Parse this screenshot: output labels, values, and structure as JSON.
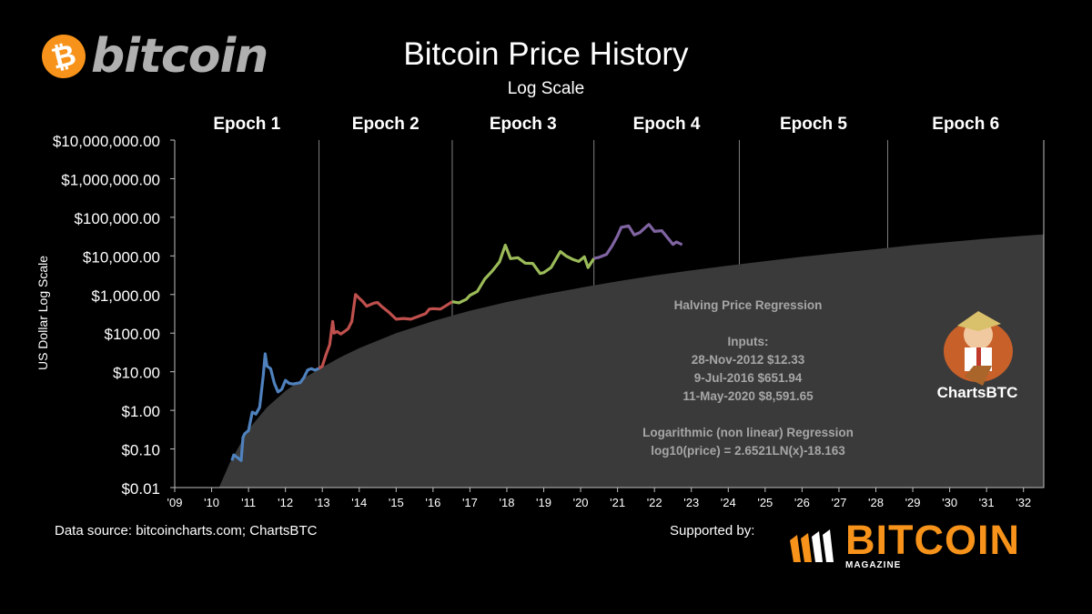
{
  "header": {
    "title": "Bitcoin Price History",
    "subtitle": "Log Scale",
    "brand": "bitcoin",
    "brand_symbol": "₿"
  },
  "chart_data": {
    "type": "line",
    "title": "Bitcoin Price History",
    "subtitle": "Log Scale",
    "ylabel": "US Dollar Log Scale",
    "xlabel": "",
    "yscale": "log",
    "ylim": [
      0.01,
      10000000
    ],
    "y_ticks": [
      {
        "v": 0.01,
        "label": "$0.01"
      },
      {
        "v": 0.1,
        "label": "$0.10"
      },
      {
        "v": 1,
        "label": "$1.00"
      },
      {
        "v": 10,
        "label": "$10.00"
      },
      {
        "v": 100,
        "label": "$100.00"
      },
      {
        "v": 1000,
        "label": "$1,000.00"
      },
      {
        "v": 10000,
        "label": "$10,000.00"
      },
      {
        "v": 100000,
        "label": "$100,000.00"
      },
      {
        "v": 1000000,
        "label": "$1,000,000.00"
      },
      {
        "v": 10000000,
        "label": "$10,000,000.00"
      }
    ],
    "xlim": [
      2009.0,
      2032.55
    ],
    "x_ticks": [
      {
        "v": 2009,
        "label": "'09"
      },
      {
        "v": 2010,
        "label": "'10"
      },
      {
        "v": 2011,
        "label": "'11"
      },
      {
        "v": 2012,
        "label": "'12"
      },
      {
        "v": 2013,
        "label": "'13"
      },
      {
        "v": 2014,
        "label": "'14"
      },
      {
        "v": 2015,
        "label": "'15"
      },
      {
        "v": 2016,
        "label": "'16"
      },
      {
        "v": 2017,
        "label": "'17"
      },
      {
        "v": 2018,
        "label": "'18"
      },
      {
        "v": 2019,
        "label": "'19"
      },
      {
        "v": 2020,
        "label": "'20"
      },
      {
        "v": 2021,
        "label": "'21"
      },
      {
        "v": 2022,
        "label": "'22"
      },
      {
        "v": 2023,
        "label": "'23"
      },
      {
        "v": 2024,
        "label": "'24"
      },
      {
        "v": 2025,
        "label": "'25"
      },
      {
        "v": 2026,
        "label": "'26"
      },
      {
        "v": 2027,
        "label": "'27"
      },
      {
        "v": 2028,
        "label": "'28"
      },
      {
        "v": 2029,
        "label": "'29"
      },
      {
        "v": 2030,
        "label": "'30"
      },
      {
        "v": 2031,
        "label": "'31"
      },
      {
        "v": 2032,
        "label": "'32"
      }
    ],
    "epochs": [
      {
        "label": "Epoch 1",
        "start": 2009.0,
        "end": 2012.91
      },
      {
        "label": "Epoch 2",
        "start": 2012.91,
        "end": 2016.52
      },
      {
        "label": "Epoch 3",
        "start": 2016.52,
        "end": 2020.36
      },
      {
        "label": "Epoch 4",
        "start": 2020.36,
        "end": 2024.3
      },
      {
        "label": "Epoch 5",
        "start": 2024.3,
        "end": 2028.32
      },
      {
        "label": "Epoch 6",
        "start": 2028.32,
        "end": 2032.55
      }
    ],
    "regression": {
      "label": "Logarithmic (non linear) Regression",
      "formula": "log10(price) = 2.6521LN(x)-18.163",
      "fill_color": "#3a3a3a",
      "points": [
        [
          2010.2,
          0.01
        ],
        [
          2010.5,
          0.045
        ],
        [
          2011.0,
          0.32
        ],
        [
          2011.5,
          1.2
        ],
        [
          2012.0,
          3.2
        ],
        [
          2012.5,
          6.8
        ],
        [
          2013.0,
          13
        ],
        [
          2013.5,
          24
        ],
        [
          2014.0,
          41
        ],
        [
          2015.0,
          100
        ],
        [
          2016.0,
          205
        ],
        [
          2017.0,
          380
        ],
        [
          2018.0,
          640
        ],
        [
          2019.0,
          1000
        ],
        [
          2020.0,
          1500
        ],
        [
          2021.0,
          2200
        ],
        [
          2022.0,
          3100
        ],
        [
          2023.0,
          4200
        ],
        [
          2024.0,
          5600
        ],
        [
          2025.0,
          7300
        ],
        [
          2026.0,
          9500
        ],
        [
          2027.0,
          12000
        ],
        [
          2028.0,
          15000
        ],
        [
          2029.0,
          19000
        ],
        [
          2030.0,
          23000
        ],
        [
          2031.0,
          28000
        ],
        [
          2032.0,
          33000
        ],
        [
          2032.55,
          36000
        ]
      ]
    },
    "series": [
      {
        "name": "Epoch 1",
        "color": "#4f81bd",
        "points": [
          [
            2010.55,
            0.05
          ],
          [
            2010.6,
            0.07
          ],
          [
            2010.7,
            0.06
          ],
          [
            2010.8,
            0.05
          ],
          [
            2010.85,
            0.2
          ],
          [
            2010.9,
            0.25
          ],
          [
            2011.0,
            0.3
          ],
          [
            2011.1,
            0.9
          ],
          [
            2011.2,
            0.8
          ],
          [
            2011.3,
            1.2
          ],
          [
            2011.4,
            8
          ],
          [
            2011.45,
            29
          ],
          [
            2011.5,
            14
          ],
          [
            2011.6,
            12
          ],
          [
            2011.7,
            5
          ],
          [
            2011.8,
            3
          ],
          [
            2011.9,
            3.5
          ],
          [
            2012.0,
            6
          ],
          [
            2012.1,
            5
          ],
          [
            2012.2,
            4.8
          ],
          [
            2012.3,
            5
          ],
          [
            2012.4,
            5.2
          ],
          [
            2012.5,
            7
          ],
          [
            2012.6,
            11
          ],
          [
            2012.7,
            12
          ],
          [
            2012.8,
            11
          ],
          [
            2012.91,
            12.3
          ]
        ]
      },
      {
        "name": "Epoch 2",
        "color": "#c0504d",
        "points": [
          [
            2012.91,
            12.3
          ],
          [
            2013.0,
            14
          ],
          [
            2013.1,
            28
          ],
          [
            2013.2,
            50
          ],
          [
            2013.28,
            200
          ],
          [
            2013.32,
            100
          ],
          [
            2013.4,
            110
          ],
          [
            2013.5,
            95
          ],
          [
            2013.6,
            110
          ],
          [
            2013.7,
            130
          ],
          [
            2013.8,
            200
          ],
          [
            2013.9,
            1000
          ],
          [
            2014.0,
            800
          ],
          [
            2014.1,
            650
          ],
          [
            2014.2,
            500
          ],
          [
            2014.4,
            600
          ],
          [
            2014.5,
            620
          ],
          [
            2014.6,
            500
          ],
          [
            2014.8,
            350
          ],
          [
            2015.0,
            230
          ],
          [
            2015.2,
            240
          ],
          [
            2015.4,
            230
          ],
          [
            2015.6,
            270
          ],
          [
            2015.8,
            320
          ],
          [
            2015.9,
            420
          ],
          [
            2016.0,
            430
          ],
          [
            2016.2,
            420
          ],
          [
            2016.4,
            550
          ],
          [
            2016.52,
            652
          ]
        ]
      },
      {
        "name": "Epoch 3",
        "color": "#9bbb59",
        "points": [
          [
            2016.52,
            652
          ],
          [
            2016.7,
            610
          ],
          [
            2016.9,
            750
          ],
          [
            2017.0,
            950
          ],
          [
            2017.2,
            1200
          ],
          [
            2017.4,
            2500
          ],
          [
            2017.6,
            4000
          ],
          [
            2017.8,
            7000
          ],
          [
            2017.96,
            19000
          ],
          [
            2018.1,
            8500
          ],
          [
            2018.3,
            9000
          ],
          [
            2018.5,
            6500
          ],
          [
            2018.7,
            6400
          ],
          [
            2018.9,
            3500
          ],
          [
            2019.0,
            3700
          ],
          [
            2019.2,
            5000
          ],
          [
            2019.45,
            13000
          ],
          [
            2019.6,
            10000
          ],
          [
            2019.8,
            8000
          ],
          [
            2019.95,
            7200
          ],
          [
            2020.1,
            9500
          ],
          [
            2020.2,
            5000
          ],
          [
            2020.36,
            8592
          ]
        ]
      },
      {
        "name": "Epoch 4",
        "color": "#8064a2",
        "points": [
          [
            2020.36,
            8592
          ],
          [
            2020.5,
            9200
          ],
          [
            2020.7,
            11000
          ],
          [
            2020.85,
            18000
          ],
          [
            2021.0,
            33000
          ],
          [
            2021.1,
            55000
          ],
          [
            2021.3,
            60000
          ],
          [
            2021.45,
            35000
          ],
          [
            2021.6,
            40000
          ],
          [
            2021.8,
            60000
          ],
          [
            2021.85,
            65000
          ],
          [
            2022.0,
            43000
          ],
          [
            2022.2,
            45000
          ],
          [
            2022.35,
            30000
          ],
          [
            2022.5,
            20000
          ],
          [
            2022.6,
            23000
          ],
          [
            2022.75,
            19500
          ]
        ]
      }
    ]
  },
  "regression_notes": {
    "title": "Halving Price Regression",
    "inputs_label": "Inputs:",
    "inputs": [
      "28-Nov-2012 $12.33",
      "9-Jul-2016 $651.94",
      "11-May-2020 $8,591.65"
    ],
    "regression_label": "Logarithmic (non linear) Regression",
    "formula": "log10(price) = 2.6521LN(x)-18.163"
  },
  "footer": {
    "source": "Data source: bitcoincharts.com; ChartsBTC",
    "supported": "Supported by:",
    "magazine": "BITCOIN",
    "magazine_sub": "MAGAZINE"
  },
  "charts_logo": {
    "label": "ChartsBTC"
  },
  "colors": {
    "background": "#000000",
    "bitcoin_orange": "#f7931a",
    "grid": "#888888",
    "regression_text": "#a6a6a6"
  }
}
